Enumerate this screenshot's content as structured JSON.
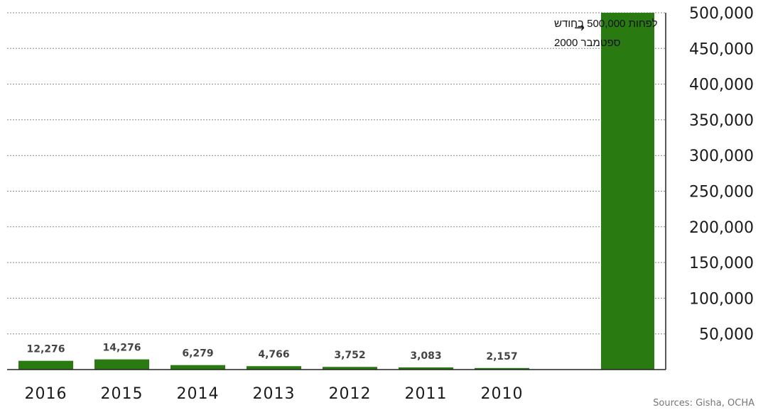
{
  "chart_data": {
    "type": "bar",
    "categories": [
      "2016",
      "2015",
      "2014",
      "2013",
      "2012",
      "2011",
      "2010",
      "ספטמבר 2000"
    ],
    "values": [
      12276,
      14276,
      6279,
      4766,
      3752,
      3083,
      2157,
      500000
    ],
    "data_labels": [
      "12,276",
      "14,276",
      "6,279",
      "4,766",
      "3,752",
      "3,083",
      "2,157",
      ""
    ],
    "x_tick_labels": [
      "2016",
      "2015",
      "2014",
      "2013",
      "2012",
      "2011",
      "2010",
      ""
    ],
    "y_ticks": [
      50000,
      100000,
      150000,
      200000,
      250000,
      300000,
      350000,
      400000,
      450000,
      500000
    ],
    "y_tick_labels": [
      "50,000",
      "100,000",
      "150,000",
      "200,000",
      "250,000",
      "300,000",
      "350,000",
      "400,000",
      "450,000",
      "500,000"
    ],
    "ylim": [
      0,
      500000
    ],
    "y_axis_side": "right",
    "grid": true,
    "bar_color": "#2a7a12",
    "title": "",
    "xlabel": "",
    "ylabel": "",
    "annotation": {
      "lines": [
        "לפחות 500,000 בחודש",
        "ספטמבר 2000"
      ],
      "arrow": "→"
    },
    "source": "Sources: Gisha, OCHA"
  }
}
